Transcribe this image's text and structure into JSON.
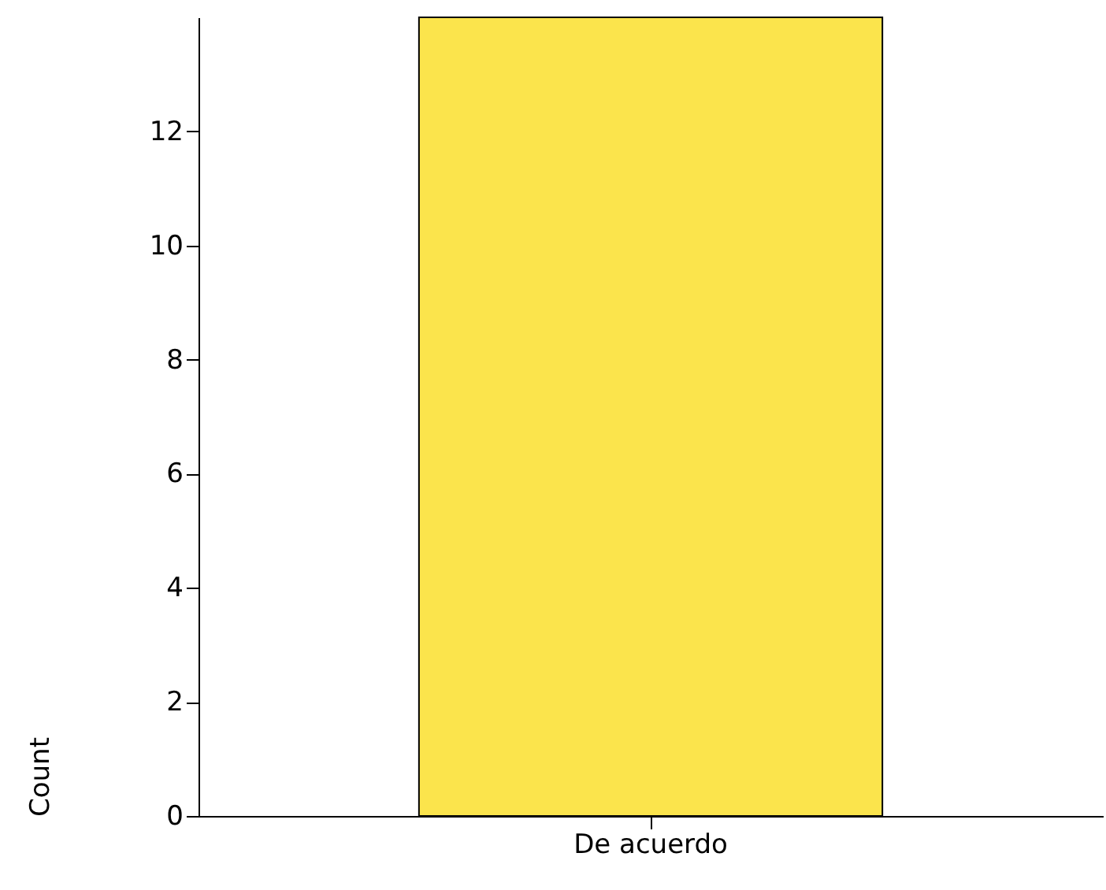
{
  "chart_data": {
    "type": "bar",
    "ylabel": "Count",
    "categories": [
      "De acuerdo"
    ],
    "values": [
      14
    ],
    "color": "#fbe44c",
    "ylim": [
      0,
      14
    ],
    "yticks": [
      0,
      2,
      4,
      6,
      8,
      10,
      12
    ],
    "grid": false
  }
}
